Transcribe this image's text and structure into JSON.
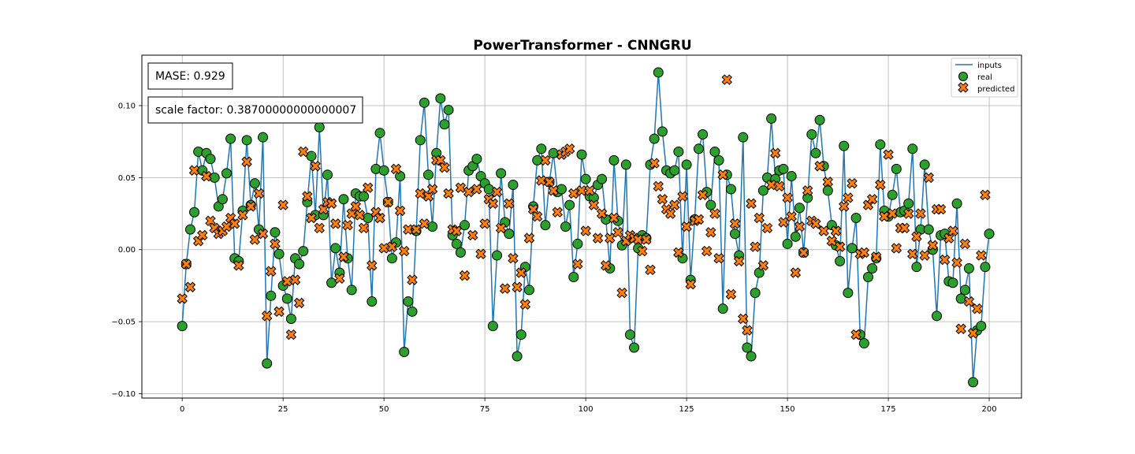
{
  "chart_data": {
    "type": "line",
    "title": "PowerTransformer - CNNGRU",
    "xlabel": "",
    "ylabel": "",
    "xlim": [
      -10,
      208
    ],
    "ylim": [
      -0.103,
      0.135
    ],
    "xticks": [
      0,
      25,
      50,
      75,
      100,
      125,
      150,
      175,
      200
    ],
    "yticks": [
      -0.1,
      -0.05,
      0.0,
      0.05,
      0.1
    ],
    "ytick_labels": [
      "−0.10",
      "−0.05",
      "0.00",
      "0.05",
      "0.10"
    ],
    "grid": true,
    "legend_position": "top-right",
    "annotations": [
      "MASE: 0.929",
      "scale factor: 0.38700000000000007"
    ],
    "colors": {
      "inputs": "#1f77b4",
      "real": "#2ca02c",
      "predicted": "#ff7f0e"
    },
    "series": [
      {
        "name": "inputs",
        "kind": "line",
        "y": [
          -0.053,
          -0.01,
          0.014,
          0.026,
          0.068,
          0.055,
          0.067,
          0.063,
          0.05,
          0.03,
          0.035,
          0.053,
          0.077,
          -0.006,
          -0.008,
          0.027,
          0.076,
          0.031,
          0.046,
          0.014,
          0.078,
          -0.079,
          -0.032,
          0.012,
          -0.003,
          -0.025,
          -0.034,
          -0.048,
          -0.006,
          -0.01,
          -0.001,
          0.033,
          0.065,
          0.024,
          0.085,
          0.024,
          0.052,
          -0.023,
          0.001,
          -0.016,
          0.035,
          -0.006,
          -0.028,
          0.039,
          0.037,
          0.037,
          0.022,
          -0.036,
          0.056,
          0.081,
          0.055,
          0.033,
          -0.006,
          0.005,
          0.051,
          -0.071,
          -0.036,
          -0.043,
          0.013,
          0.076,
          0.102,
          0.052,
          0.016,
          0.067,
          0.105,
          0.087,
          0.097,
          0.01,
          0.004,
          -0.002,
          0.017,
          0.055,
          0.058,
          0.063,
          0.051,
          0.046,
          0.042,
          -0.053,
          -0.004,
          0.053,
          0.019,
          0.011,
          0.045,
          -0.074,
          -0.059,
          -0.012,
          -0.028,
          0.03,
          0.062,
          0.07,
          0.017,
          0.047,
          0.067,
          0.04,
          0.042,
          0.016,
          0.031,
          -0.019,
          0.004,
          0.066,
          0.049,
          0.037,
          0.036,
          0.045,
          0.049,
          0.021,
          -0.013,
          0.062,
          0.02,
          0.003,
          0.059,
          -0.059,
          -0.068,
          0.001,
          0.01,
          0.008,
          0.059,
          0.077,
          0.123,
          0.082,
          0.055,
          0.053,
          0.055,
          0.068,
          -0.006,
          0.059,
          -0.021,
          0.021,
          0.07,
          0.08,
          0.04,
          0.031,
          0.068,
          0.062,
          -0.041,
          0.052,
          0.042,
          0.011,
          -0.004,
          0.078,
          -0.068,
          -0.074,
          -0.03,
          -0.016,
          0.041,
          0.05,
          0.091,
          0.049,
          0.055,
          0.056,
          0.004,
          0.051,
          0.009,
          0.029,
          -0.002,
          0.036,
          0.08,
          0.067,
          0.09,
          0.058,
          0.041,
          0.017,
          0.003,
          -0.008,
          0.072,
          -0.03,
          0.001,
          0.022,
          -0.059,
          -0.065,
          -0.019,
          -0.013,
          -0.006,
          0.073,
          0.027,
          0.023,
          0.038,
          0.056,
          0.026,
          0.027,
          0.032,
          0.07,
          -0.012,
          0.014,
          0.059,
          0.014,
          0.0,
          -0.046,
          0.01,
          0.011,
          -0.022,
          -0.023,
          0.032,
          -0.034,
          -0.028,
          -0.013,
          -0.092,
          -0.056,
          -0.053,
          -0.012,
          0.011
        ]
      },
      {
        "name": "real",
        "kind": "scatter",
        "marker": "circle",
        "y": [
          -0.053,
          -0.01,
          0.014,
          0.026,
          0.068,
          0.055,
          0.067,
          0.063,
          0.05,
          0.03,
          0.035,
          0.053,
          0.077,
          -0.006,
          -0.008,
          0.027,
          0.076,
          0.031,
          0.046,
          0.014,
          0.078,
          -0.079,
          -0.032,
          0.012,
          -0.003,
          -0.025,
          -0.034,
          -0.048,
          -0.006,
          -0.01,
          -0.001,
          0.033,
          0.065,
          0.024,
          0.085,
          0.024,
          0.052,
          -0.023,
          0.001,
          -0.016,
          0.035,
          -0.006,
          -0.028,
          0.039,
          0.037,
          0.037,
          0.022,
          -0.036,
          0.056,
          0.081,
          0.055,
          0.033,
          -0.006,
          0.005,
          0.051,
          -0.071,
          -0.036,
          -0.043,
          0.013,
          0.076,
          0.102,
          0.052,
          0.016,
          0.067,
          0.105,
          0.087,
          0.097,
          0.01,
          0.004,
          -0.002,
          0.017,
          0.055,
          0.058,
          0.063,
          0.051,
          0.046,
          0.042,
          -0.053,
          -0.004,
          0.053,
          0.019,
          0.011,
          0.045,
          -0.074,
          -0.059,
          -0.012,
          -0.028,
          0.03,
          0.062,
          0.07,
          0.017,
          0.047,
          0.067,
          0.04,
          0.042,
          0.016,
          0.031,
          -0.019,
          0.004,
          0.066,
          0.049,
          0.037,
          0.036,
          0.045,
          0.049,
          0.021,
          -0.013,
          0.062,
          0.02,
          0.003,
          0.059,
          -0.059,
          -0.068,
          0.001,
          0.01,
          0.008,
          0.059,
          0.077,
          0.123,
          0.082,
          0.055,
          0.053,
          0.055,
          0.068,
          -0.006,
          0.059,
          -0.021,
          0.021,
          0.07,
          0.08,
          0.04,
          0.031,
          0.068,
          0.062,
          -0.041,
          0.052,
          0.042,
          0.011,
          -0.004,
          0.078,
          -0.068,
          -0.074,
          -0.03,
          -0.016,
          0.041,
          0.05,
          0.091,
          0.049,
          0.055,
          0.056,
          0.004,
          0.051,
          0.009,
          0.029,
          -0.002,
          0.036,
          0.08,
          0.067,
          0.09,
          0.058,
          0.041,
          0.017,
          0.003,
          -0.008,
          0.072,
          -0.03,
          0.001,
          0.022,
          -0.059,
          -0.065,
          -0.019,
          -0.013,
          -0.006,
          0.073,
          0.027,
          0.023,
          0.038,
          0.056,
          0.026,
          0.027,
          0.032,
          0.07,
          -0.012,
          0.014,
          0.059,
          0.014,
          0.0,
          -0.046,
          0.01,
          0.011,
          -0.022,
          -0.023,
          0.032,
          -0.034,
          -0.028,
          -0.013,
          -0.092,
          -0.056,
          -0.053,
          -0.012,
          0.011
        ]
      },
      {
        "name": "predicted",
        "kind": "scatter",
        "marker": "X",
        "y": [
          -0.034,
          -0.01,
          -0.026,
          0.055,
          0.006,
          0.01,
          0.051,
          0.02,
          0.015,
          0.011,
          0.013,
          0.016,
          0.022,
          0.018,
          -0.011,
          0.024,
          0.061,
          0.03,
          0.007,
          0.039,
          0.011,
          -0.046,
          -0.015,
          0.004,
          -0.043,
          0.031,
          -0.022,
          -0.059,
          -0.021,
          -0.037,
          0.068,
          0.037,
          0.022,
          0.058,
          0.015,
          0.028,
          0.033,
          0.032,
          0.018,
          -0.02,
          -0.005,
          0.017,
          0.025,
          0.03,
          0.024,
          0.015,
          0.043,
          -0.011,
          0.026,
          0.022,
          0.001,
          0.033,
          0.002,
          0.056,
          0.027,
          -0.001,
          0.014,
          -0.021,
          0.014,
          0.039,
          0.018,
          0.037,
          0.042,
          0.062,
          0.062,
          0.057,
          0.039,
          0.014,
          0.013,
          0.043,
          -0.018,
          0.04,
          0.01,
          0.042,
          -0.003,
          0.018,
          0.035,
          0.032,
          0.04,
          0.015,
          -0.027,
          0.032,
          -0.006,
          -0.026,
          -0.016,
          -0.038,
          0.008,
          0.028,
          0.023,
          0.048,
          0.062,
          0.047,
          0.041,
          0.026,
          0.066,
          0.068,
          0.07,
          0.039,
          -0.01,
          0.041,
          0.013,
          0.041,
          0.031,
          0.008,
          0.025,
          -0.011,
          0.008,
          0.022,
          0.012,
          -0.03,
          0.006,
          0.01,
          0.008,
          0.007,
          -0.001,
          0.007,
          -0.014,
          0.06,
          0.044,
          0.035,
          0.028,
          0.025,
          0.031,
          -0.002,
          0.037,
          0.016,
          -0.024,
          0.02,
          0.021,
          0.038,
          -0.001,
          0.012,
          0.025,
          -0.006,
          0.052,
          0.118,
          -0.031,
          0.018,
          -0.008,
          -0.048,
          -0.056,
          0.032,
          0.002,
          0.022,
          -0.011,
          0.015,
          0.045,
          0.067,
          0.044,
          0.019,
          0.036,
          0.023,
          -0.016,
          0.016,
          -0.002,
          0.041,
          0.02,
          0.018,
          0.058,
          0.013,
          0.047,
          0.006,
          0.013,
          0.002,
          0.03,
          0.036,
          0.046,
          -0.059,
          -0.003,
          -0.002,
          0.031,
          0.035,
          -0.005,
          0.045,
          0.023,
          0.066,
          0.025,
          0.001,
          0.015,
          0.015,
          0.025,
          -0.003,
          0.009,
          0.025,
          -0.004,
          0.05,
          0.003,
          0.028,
          0.028,
          -0.007,
          0.008,
          0.013,
          -0.009,
          -0.055,
          0.004,
          -0.036,
          -0.058,
          -0.041,
          -0.004,
          0.038
        ]
      }
    ]
  }
}
